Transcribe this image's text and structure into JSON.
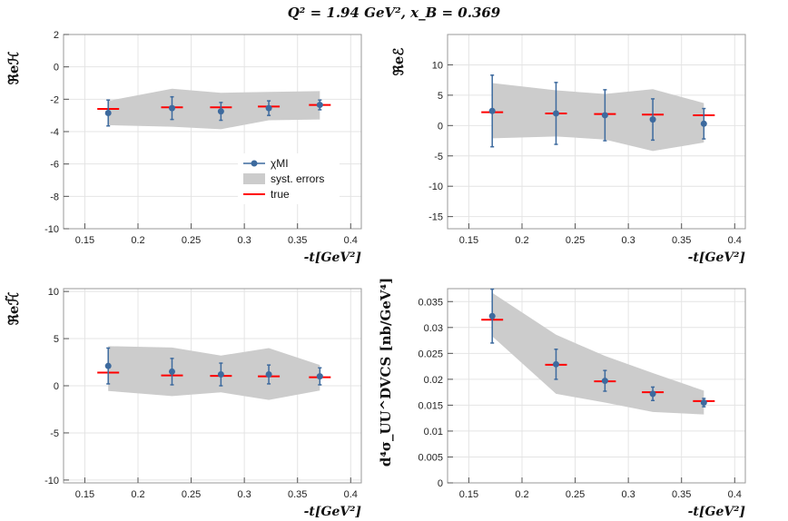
{
  "figure_title": "Q² = 1.94 GeV², x_B = 0.369",
  "colors": {
    "band": "#cccccc",
    "point": "#3d6a9e",
    "true": "#ff0000",
    "frame": "#999999",
    "grid": "#e4e4e4"
  },
  "legend": {
    "model_label": "χMI",
    "syst_label": "syst. errors",
    "true_label": "true"
  },
  "chart_data": [
    {
      "type": "scatter",
      "panel": "top-left",
      "ylabel": "ℜeℋ",
      "xlabel": "-t[GeV²]",
      "xlim": [
        0.13,
        0.41
      ],
      "ylim": [
        -10,
        2
      ],
      "xticks": [
        0.15,
        0.2,
        0.25,
        0.3,
        0.35,
        0.4
      ],
      "xtick_labels": [
        "0.15",
        "0.2",
        "0.25",
        "0.3",
        "0.35",
        "0.4"
      ],
      "yticks": [
        -10,
        -8,
        -6,
        -4,
        -2,
        0,
        2
      ],
      "ytick_labels": [
        "-10",
        "-8",
        "-6",
        "-4",
        "-2",
        "0",
        "2"
      ],
      "x": [
        0.172,
        0.232,
        0.278,
        0.323,
        0.371
      ],
      "y": [
        -2.85,
        -2.55,
        -2.75,
        -2.55,
        -2.35
      ],
      "yerr": [
        0.8,
        0.7,
        0.55,
        0.45,
        0.3
      ],
      "true_y": [
        -2.6,
        -2.5,
        -2.5,
        -2.45,
        -2.35
      ],
      "band_upper": [
        -2.1,
        -1.35,
        -1.6,
        -1.55,
        -1.5
      ],
      "band_lower": [
        -3.6,
        -3.7,
        -3.85,
        -3.3,
        -3.25
      ],
      "legend": "top-left"
    },
    {
      "type": "scatter",
      "panel": "top-right",
      "ylabel": "ℜeℰ",
      "xlabel": "-t[GeV²]",
      "xlim": [
        0.13,
        0.41
      ],
      "ylim": [
        -17,
        15
      ],
      "xticks": [
        0.15,
        0.2,
        0.25,
        0.3,
        0.35,
        0.4
      ],
      "xtick_labels": [
        "0.15",
        "0.2",
        "0.25",
        "0.3",
        "0.35",
        "0.4"
      ],
      "yticks": [
        -15,
        -10,
        -5,
        0,
        5,
        10
      ],
      "ytick_labels": [
        "-15",
        "-10",
        "-5",
        "0",
        "5",
        "10"
      ],
      "x": [
        0.172,
        0.232,
        0.278,
        0.323,
        0.371
      ],
      "y": [
        2.4,
        2.0,
        1.7,
        1.0,
        0.3
      ],
      "yerr": [
        5.9,
        5.1,
        4.2,
        3.4,
        2.5
      ],
      "true_y": [
        2.2,
        2.0,
        1.9,
        1.8,
        1.7
      ],
      "band_upper": [
        7.0,
        5.8,
        5.2,
        6.0,
        3.7
      ],
      "band_lower": [
        -2.1,
        -1.8,
        -2.3,
        -4.2,
        -2.8
      ]
    },
    {
      "type": "scatter",
      "panel": "bottom-left",
      "ylabel": "ℜeℋ̃",
      "xlabel": "-t[GeV²]",
      "xlim": [
        0.13,
        0.41
      ],
      "ylim": [
        -10.3,
        10.3
      ],
      "xticks": [
        0.15,
        0.2,
        0.25,
        0.3,
        0.35,
        0.4
      ],
      "xtick_labels": [
        "0.15",
        "0.2",
        "0.25",
        "0.3",
        "0.35",
        "0.4"
      ],
      "yticks": [
        -10,
        -5,
        0,
        5,
        10
      ],
      "ytick_labels": [
        "-10",
        "-5",
        "0",
        "5",
        "10"
      ],
      "x": [
        0.172,
        0.232,
        0.278,
        0.323,
        0.371
      ],
      "y": [
        2.1,
        1.5,
        1.2,
        1.2,
        1.0
      ],
      "yerr": [
        1.9,
        1.4,
        1.2,
        1.0,
        0.9
      ],
      "true_y": [
        1.4,
        1.1,
        1.05,
        1.0,
        0.9
      ],
      "band_upper": [
        4.2,
        4.05,
        3.2,
        4.0,
        2.2
      ],
      "band_lower": [
        -0.55,
        -1.1,
        -0.7,
        -1.5,
        -0.5
      ]
    },
    {
      "type": "scatter",
      "panel": "bottom-right",
      "ylabel": "d⁴σ_UU^DVCS [nb/GeV⁴]",
      "xlabel": "-t[GeV²]",
      "xlim": [
        0.13,
        0.41
      ],
      "ylim": [
        0,
        0.0375
      ],
      "xticks": [
        0.15,
        0.2,
        0.25,
        0.3,
        0.35,
        0.4
      ],
      "xtick_labels": [
        "0.15",
        "0.2",
        "0.25",
        "0.3",
        "0.35",
        "0.4"
      ],
      "yticks": [
        0,
        0.005,
        0.01,
        0.015,
        0.02,
        0.025,
        0.03,
        0.035
      ],
      "ytick_labels": [
        "0",
        "0.005",
        "0.01",
        "0.015",
        "0.02",
        "0.025",
        "0.03",
        "0.035"
      ],
      "x": [
        0.172,
        0.232,
        0.278,
        0.323,
        0.371
      ],
      "y": [
        0.0322,
        0.0229,
        0.0197,
        0.0172,
        0.0155
      ],
      "yerr": [
        0.0052,
        0.0029,
        0.002,
        0.0013,
        0.0008
      ],
      "true_y": [
        0.0315,
        0.0228,
        0.0196,
        0.0175,
        0.0158
      ],
      "band_upper": [
        0.0367,
        0.0286,
        0.0245,
        0.0212,
        0.0178
      ],
      "band_lower": [
        0.0283,
        0.0172,
        0.0155,
        0.0137,
        0.0132
      ]
    }
  ]
}
